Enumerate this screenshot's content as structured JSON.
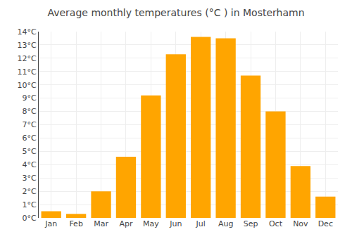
{
  "chart_data": {
    "type": "bar",
    "title": "Average monthly temperatures (°C ) in Mosterhamn",
    "categories": [
      "Jan",
      "Feb",
      "Mar",
      "Apr",
      "May",
      "Jun",
      "Jul",
      "Aug",
      "Sep",
      "Oct",
      "Nov",
      "Dec"
    ],
    "values": [
      0.5,
      0.3,
      2.0,
      4.6,
      9.2,
      12.3,
      13.6,
      13.5,
      10.7,
      8.0,
      3.9,
      1.6
    ],
    "color": "#FFA500",
    "ylim": [
      0,
      14
    ],
    "yticks": [
      {
        "value": 0,
        "label": "0°C"
      },
      {
        "value": 1,
        "label": "1°C"
      },
      {
        "value": 2,
        "label": "2°C"
      },
      {
        "value": 3,
        "label": "3°C"
      },
      {
        "value": 4,
        "label": "4°C"
      },
      {
        "value": 5,
        "label": "5°C"
      },
      {
        "value": 6,
        "label": "6°C"
      },
      {
        "value": 7,
        "label": "7°C"
      },
      {
        "value": 8,
        "label": "8°C"
      },
      {
        "value": 9,
        "label": "9°C"
      },
      {
        "value": 10,
        "label": "10°C"
      },
      {
        "value": 11,
        "label": "11°C"
      },
      {
        "value": 12,
        "label": "12°C"
      },
      {
        "value": 13,
        "label": "13°C"
      },
      {
        "value": 14,
        "label": "14°C"
      }
    ],
    "grid": true
  }
}
